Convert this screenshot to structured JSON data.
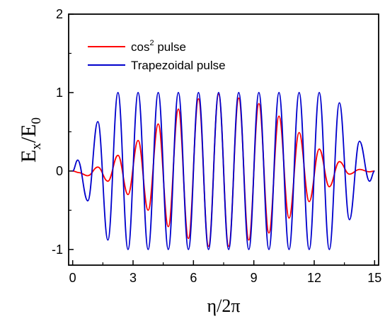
{
  "chart_data": {
    "type": "line",
    "xlabel": "η/2π",
    "ylabel": "E_x/E_0",
    "xlim": [
      -0.2,
      15.2
    ],
    "ylim": [
      -1.2,
      2.0
    ],
    "x_ticks": [
      "0",
      "3",
      "6",
      "9",
      "12",
      "15"
    ],
    "y_ticks": [
      "-1",
      "0",
      "1",
      "2"
    ],
    "grid": false,
    "legend_position": "top-left",
    "series": [
      {
        "name": "cos² pulse",
        "legend_base": "cos",
        "legend_sup": "2",
        "legend_rest": " pulse",
        "color": "#ff0000",
        "x": [
          0,
          0.3,
          0.75,
          1.25,
          1.75,
          2.25,
          2.75,
          3.25,
          3.75,
          4.25,
          4.75,
          5.25,
          5.75,
          6.25,
          6.75,
          7.25,
          7.75,
          8.25,
          8.75,
          9.25,
          9.75,
          10.25,
          10.75,
          11.25,
          11.75,
          12.25,
          12.75,
          13.25,
          13.75,
          14.25,
          14.75,
          15
        ],
        "y": [
          0,
          -0.02,
          -0.06,
          0.05,
          -0.13,
          0.2,
          -0.3,
          0.39,
          -0.5,
          0.6,
          -0.71,
          0.79,
          -0.86,
          0.92,
          -0.96,
          0.98,
          -0.96,
          0.93,
          -0.88,
          0.86,
          -0.79,
          0.7,
          -0.6,
          0.49,
          -0.39,
          0.28,
          -0.2,
          0.12,
          -0.04,
          0.02,
          -0.01,
          0
        ]
      },
      {
        "name": "Trapezoidal pulse",
        "color": "#0000cc",
        "x": [
          0,
          0.25,
          0.75,
          1.25,
          1.75,
          2.25,
          2.75,
          3.25,
          3.75,
          4.25,
          4.75,
          5.25,
          5.75,
          6.25,
          6.75,
          7.25,
          7.75,
          8.25,
          8.75,
          9.25,
          9.75,
          10.25,
          10.75,
          11.25,
          11.75,
          12.25,
          12.75,
          13.25,
          13.75,
          14.25,
          14.75,
          15
        ],
        "y": [
          0,
          0.14,
          -0.38,
          0.63,
          -0.88,
          1,
          -1,
          1,
          -1,
          1,
          -1,
          1,
          -1,
          1,
          -1,
          1,
          -1,
          1,
          -1,
          1,
          -1,
          1,
          -1,
          1,
          -1,
          1,
          -1,
          0.87,
          -0.62,
          0.38,
          -0.13,
          0
        ]
      }
    ]
  }
}
